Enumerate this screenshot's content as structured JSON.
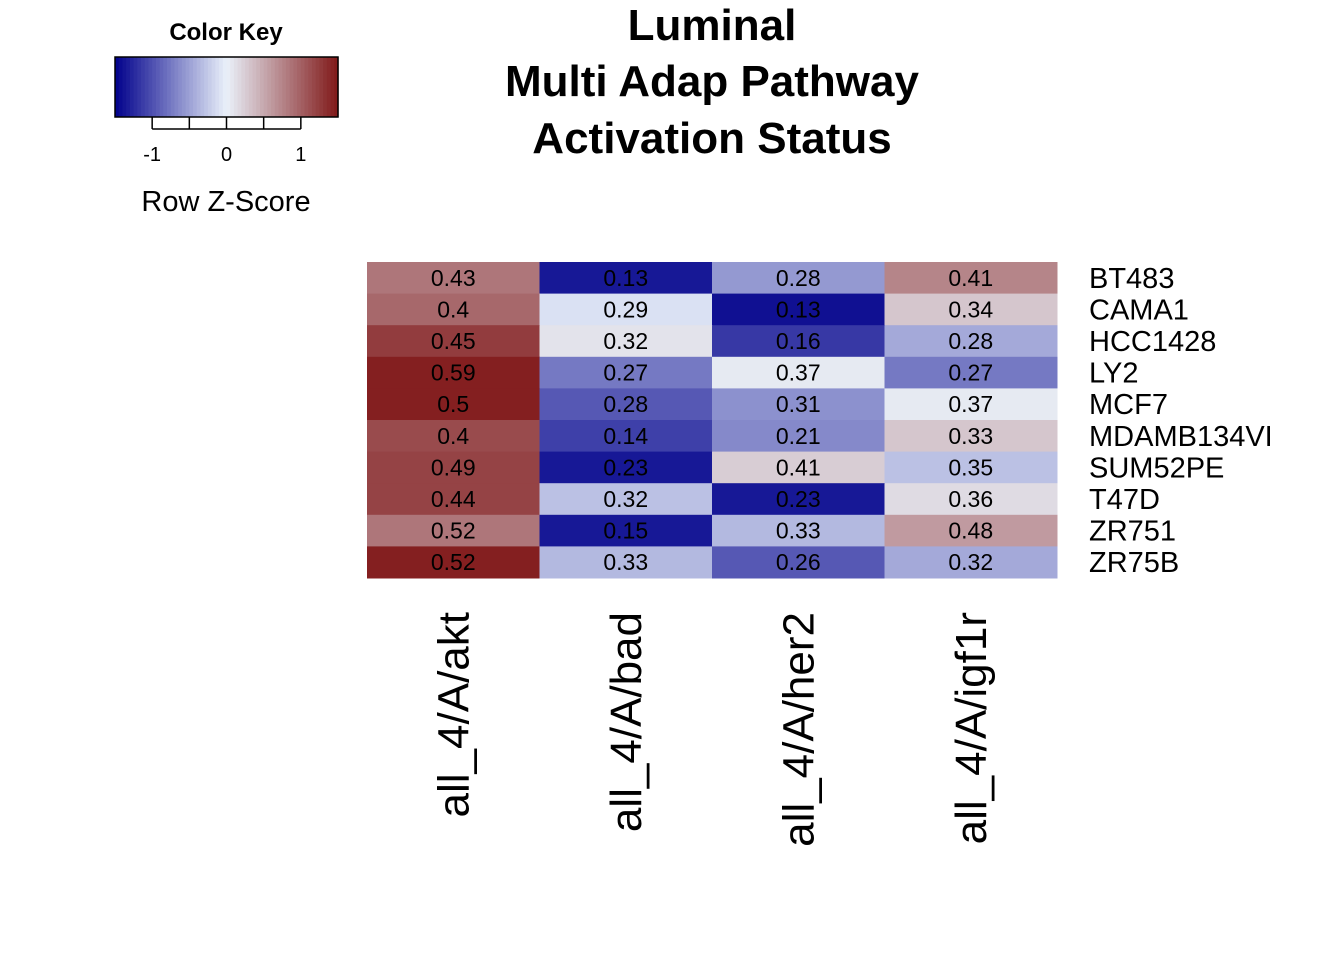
{
  "chart_data": {
    "type": "heatmap",
    "title_lines": [
      "Luminal",
      "Multi Adap Pathway",
      "Activation Status"
    ],
    "columns": [
      "all_4/A/akt",
      "all_4/A/bad",
      "all_4/A/her2",
      "all_4/A/igf1r"
    ],
    "rows": [
      "BT483",
      "CAMA1",
      "HCC1428",
      "LY2",
      "MCF7",
      "MDAMB134VI",
      "SUM52PE",
      "T47D",
      "ZR751",
      "ZR75B"
    ],
    "cell_labels": [
      [
        "0.43",
        "0.13",
        "0.28",
        "0.41"
      ],
      [
        "0.4",
        "0.29",
        "0.13",
        "0.34"
      ],
      [
        "0.45",
        "0.32",
        "0.16",
        "0.28"
      ],
      [
        "0.59",
        "0.27",
        "0.37",
        "0.27"
      ],
      [
        "0.5",
        "0.28",
        "0.31",
        "0.37"
      ],
      [
        "0.4",
        "0.14",
        "0.21",
        "0.33"
      ],
      [
        "0.49",
        "0.23",
        "0.41",
        "0.35"
      ],
      [
        "0.44",
        "0.32",
        "0.23",
        "0.36"
      ],
      [
        "0.52",
        "0.15",
        "0.33",
        "0.48"
      ],
      [
        "0.52",
        "0.33",
        "0.26",
        "0.32"
      ]
    ],
    "row_z_scores": [
      [
        0.85,
        -1.35,
        -0.55,
        0.75
      ],
      [
        0.95,
        -0.1,
        -1.4,
        0.3
      ],
      [
        1.25,
        0.1,
        -1.15,
        -0.45
      ],
      [
        1.45,
        -0.75,
        0.05,
        -0.75
      ],
      [
        1.45,
        -0.95,
        -0.6,
        0.05
      ],
      [
        1.15,
        -1.1,
        -0.65,
        0.3
      ],
      [
        1.2,
        -1.35,
        0.25,
        -0.3
      ],
      [
        1.2,
        -0.3,
        -1.35,
        0.15
      ],
      [
        0.85,
        -1.35,
        -0.35,
        0.6
      ],
      [
        1.45,
        -0.35,
        -0.95,
        -0.45
      ]
    ],
    "color_scale": {
      "low": "#00008B",
      "mid": "#EAF1FA",
      "high": "#801818",
      "range": [
        -1.5,
        1.5
      ]
    },
    "color_key": {
      "title": "Color Key",
      "ticks": [
        "-1",
        "0",
        "1"
      ],
      "tick_values": [
        -1,
        0,
        1
      ],
      "label": "Row Z-Score"
    }
  }
}
